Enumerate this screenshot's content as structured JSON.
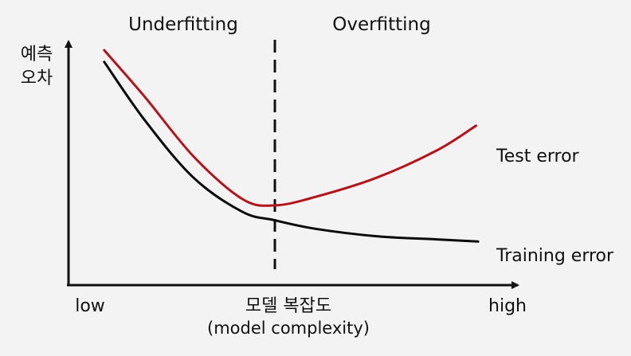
{
  "chart_data": {
    "type": "line",
    "x_range": [
      0,
      1
    ],
    "y_range": [
      0,
      1
    ],
    "grid": false,
    "region_labels": [
      "Underfitting",
      "Overfitting"
    ],
    "y_axis_title": [
      "예측",
      "오차"
    ],
    "x_tick_labels": {
      "low": "low",
      "high": "high"
    },
    "x_axis_title": [
      "모델 복잡도",
      "(model complexity)"
    ],
    "optimal_complexity_x": 0.5,
    "series": [
      {
        "name": "Test error",
        "color": "#b4141b",
        "x": [
          0.08,
          0.18,
          0.3,
          0.42,
          0.5,
          0.6,
          0.75,
          0.9,
          0.995
        ],
        "y": [
          1.0,
          0.78,
          0.5,
          0.3,
          0.27,
          0.31,
          0.4,
          0.53,
          0.645
        ]
      },
      {
        "name": "Training error",
        "color": "#0b0b0b",
        "x": [
          0.08,
          0.18,
          0.3,
          0.42,
          0.5,
          0.6,
          0.75,
          0.9,
          1.0
        ],
        "y": [
          0.945,
          0.67,
          0.4,
          0.24,
          0.2,
          0.16,
          0.125,
          0.11,
          0.1
        ]
      }
    ]
  }
}
